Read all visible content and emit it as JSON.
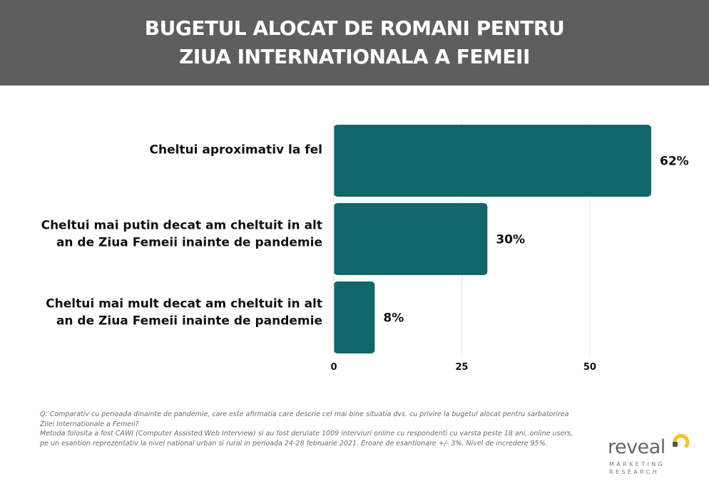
{
  "header": {
    "title_line1": "BUGETUL ALOCAT DE ROMANI PENTRU",
    "title_line2": "ZIUA INTERNATIONALA A FEMEII"
  },
  "chart_data": {
    "type": "bar",
    "orientation": "horizontal",
    "categories": [
      [
        "Cheltui aproximativ la fel"
      ],
      [
        "Cheltui mai putin decat am cheltuit in alt",
        "an de Ziua Femeii inainte de pandemie"
      ],
      [
        "Cheltui mai mult decat am cheltuit in alt",
        "an de Ziua Femeii inainte de pandemie"
      ]
    ],
    "values": [
      62,
      30,
      8
    ],
    "value_labels": [
      "62%",
      "30%",
      "8%"
    ],
    "xlim": [
      0,
      62
    ],
    "xticks": [
      0,
      25,
      50
    ],
    "grid": true,
    "bar_color": "#11676a",
    "title": "",
    "xlabel": "",
    "ylabel": ""
  },
  "footnote": {
    "line1": "Q: Comparativ cu perioada dinainte de pandemie, care este afirmatia care descrie cel mai bine situatia dvs. cu privire la bugetul alocat pentru sarbatorirea",
    "line2": "Zilei Internationale a Femeii?",
    "line3": "Metoda folosita a fost CAWI (Computer Assisted Web Interview) si au fost derulate 1009 interviuri online cu respondenti cu varsta peste 18 ani, online users,",
    "line4": "pe un esantion reprezentativ la nivel national urban si rural in perioada 24-28 februarie 2021. Eroare de esantionare +/- 3%. Nivel de incredere 95%."
  },
  "logo": {
    "word": "reveal",
    "sub1": "MARKETING",
    "sub2": "RESEARCH",
    "accent_color": "#f2c230"
  }
}
